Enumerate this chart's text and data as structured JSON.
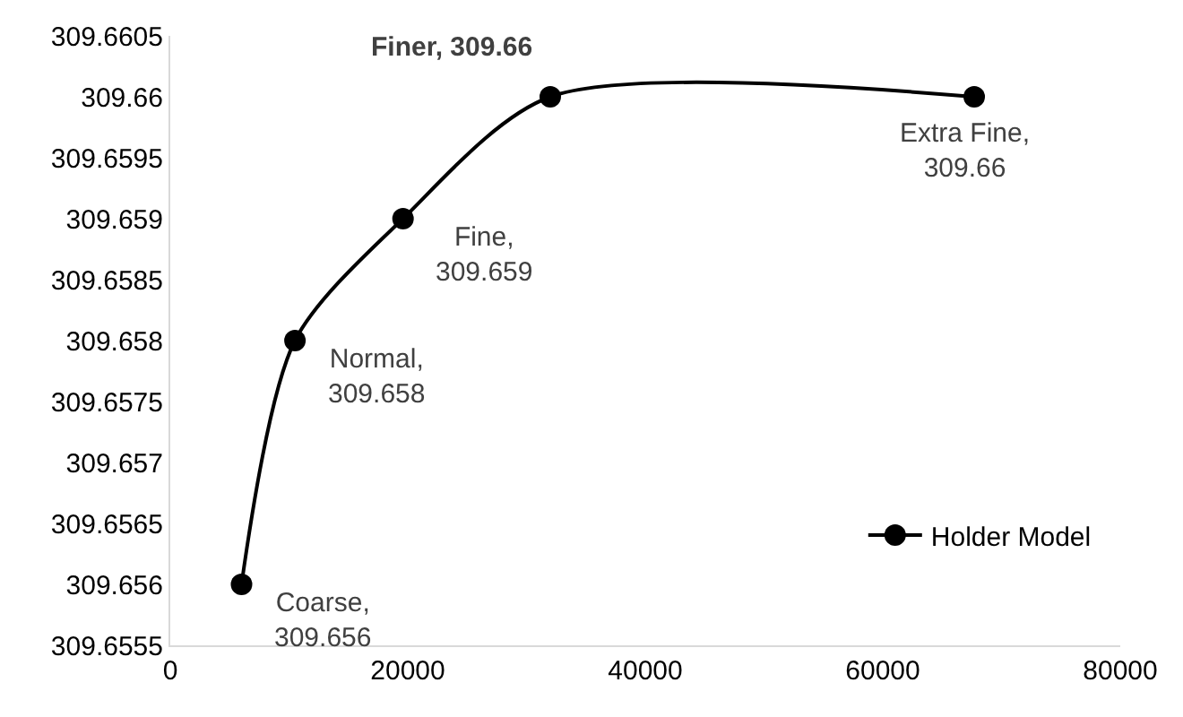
{
  "chart_data": {
    "type": "line",
    "x": [
      6000,
      10500,
      19600,
      32000,
      67700
    ],
    "series": [
      {
        "name": "Holder Model",
        "color": "#000000",
        "values": [
          309.656,
          309.658,
          309.659,
          309.66,
          309.66
        ]
      }
    ],
    "annotations": [
      {
        "text": "Coarse,\n309.656",
        "x": 6000,
        "y": 309.656
      },
      {
        "text": "Normal,\n309.658",
        "x": 10500,
        "y": 309.658
      },
      {
        "text": "Fine,\n309.659",
        "x": 19600,
        "y": 309.659
      },
      {
        "text": "Finer, 309.66",
        "x": 32000,
        "y": 309.66
      },
      {
        "text": "Extra Fine,\n309.66",
        "x": 67700,
        "y": 309.66
      }
    ],
    "xlim": [
      0,
      80000
    ],
    "xticks": [
      0,
      20000,
      40000,
      60000,
      80000
    ],
    "ylim": [
      309.6555,
      309.6605
    ],
    "yticks": [
      309.6555,
      309.656,
      309.6565,
      309.657,
      309.6575,
      309.658,
      309.6585,
      309.659,
      309.6595,
      309.66,
      309.6605
    ],
    "marker": "circle",
    "line_style": "solid",
    "grid": false,
    "legend": "bottom right"
  }
}
